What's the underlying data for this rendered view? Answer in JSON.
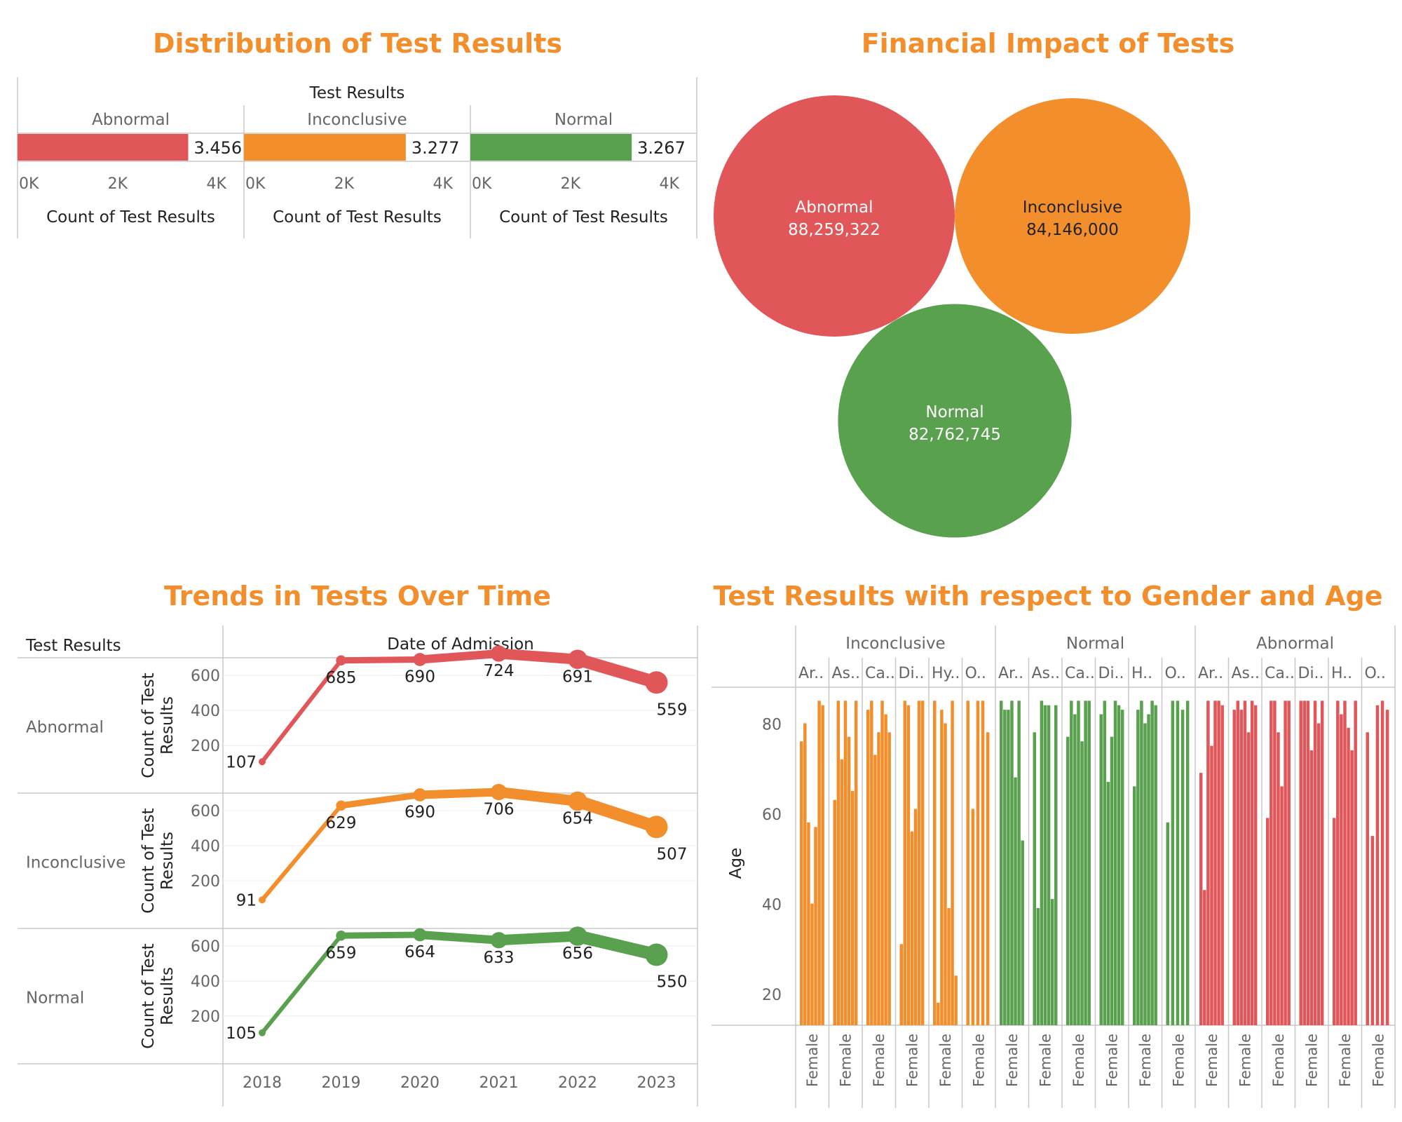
{
  "titles": {
    "distribution": "Distribution of Test Results",
    "financial": "Financial Impact of Tests",
    "trends": "Trends in Tests Over Time",
    "gender_age": "Test Results with respect to Gender and Age"
  },
  "colors": {
    "Abnormal": "#E15759",
    "Inconclusive": "#F28E2B",
    "Normal": "#59A14F",
    "title": "#F28E2B"
  },
  "chart_data": [
    {
      "id": "distribution",
      "type": "bar",
      "title": "Distribution of Test Results",
      "column_header": "Test Results",
      "categories": [
        "Abnormal",
        "Inconclusive",
        "Normal"
      ],
      "values": [
        3456,
        3277,
        3267
      ],
      "value_labels": [
        "3.456",
        "3.277",
        "3.267"
      ],
      "xlabel": "Count of Test Results",
      "xlim": [
        0,
        4500
      ],
      "ticks": [
        0,
        2000,
        4000
      ],
      "tick_labels": [
        "0K",
        "2K",
        "4K"
      ]
    },
    {
      "id": "financial",
      "type": "bubble",
      "title": "Financial Impact of Tests",
      "categories": [
        "Abnormal",
        "Inconclusive",
        "Normal"
      ],
      "values": [
        88259322,
        84146000,
        82762745
      ],
      "value_labels": [
        "88,259,322",
        "84,146,000",
        "82,762,745"
      ]
    },
    {
      "id": "trends",
      "type": "line",
      "title": "Trends in Tests Over Time",
      "row_header": "Test Results",
      "column_header": "Date of Admission",
      "ylabel": "Count of Test Results",
      "x": [
        "2018",
        "2019",
        "2020",
        "2021",
        "2022",
        "2023"
      ],
      "yticks": [
        200,
        400,
        600
      ],
      "ylim": [
        0,
        800
      ],
      "series": [
        {
          "name": "Abnormal",
          "values": [
            107,
            685,
            690,
            724,
            691,
            559
          ]
        },
        {
          "name": "Inconclusive",
          "values": [
            91,
            629,
            690,
            706,
            654,
            507
          ]
        },
        {
          "name": "Normal",
          "values": [
            105,
            659,
            664,
            633,
            656,
            550
          ]
        }
      ]
    },
    {
      "id": "gender_age",
      "type": "bar",
      "title": "Test Results with respect to Gender and Age",
      "ylabel": "Age",
      "yticks": [
        20,
        40,
        60,
        80
      ],
      "ylim": [
        13,
        88
      ],
      "gender_label": "Female",
      "groups": [
        {
          "name": "Inconclusive",
          "subgroups": [
            {
              "label": "Ar..",
              "values": [
                76,
                80,
                58,
                40,
                57,
                85,
                84
              ]
            },
            {
              "label": "As..",
              "values": [
                63,
                85,
                72,
                85,
                77,
                65,
                85
              ]
            },
            {
              "label": "Ca..",
              "values": [
                83,
                85,
                73,
                78,
                85,
                82,
                78
              ]
            },
            {
              "label": "Di..",
              "values": [
                31,
                85,
                84,
                56,
                61,
                85,
                85
              ]
            },
            {
              "label": "Hy..",
              "values": [
                85,
                18,
                83,
                80,
                39,
                85,
                24
              ]
            },
            {
              "label": "O..",
              "values": [
                85,
                61,
                85,
                85,
                78
              ]
            }
          ]
        },
        {
          "name": "Normal",
          "subgroups": [
            {
              "label": "Ar..",
              "values": [
                85,
                83,
                83,
                85,
                68,
                85,
                54
              ]
            },
            {
              "label": "As..",
              "values": [
                78,
                39,
                85,
                84,
                84,
                41,
                84
              ]
            },
            {
              "label": "Ca..",
              "values": [
                77,
                85,
                82,
                85,
                76,
                85,
                85
              ]
            },
            {
              "label": "Di..",
              "values": [
                82,
                85,
                67,
                77,
                85,
                84,
                83
              ]
            },
            {
              "label": "H..",
              "values": [
                66,
                83,
                85,
                80,
                82,
                85,
                84
              ]
            },
            {
              "label": "O..",
              "values": [
                58,
                85,
                85,
                83,
                85
              ]
            }
          ]
        },
        {
          "name": "Abnormal",
          "subgroups": [
            {
              "label": "Ar..",
              "values": [
                69,
                43,
                85,
                75,
                85,
                85,
                84
              ]
            },
            {
              "label": "As..",
              "values": [
                83,
                85,
                83,
                85,
                78,
                85,
                84
              ]
            },
            {
              "label": "Ca..",
              "values": [
                59,
                85,
                85,
                78,
                66,
                85,
                85
              ]
            },
            {
              "label": "Di..",
              "values": [
                85,
                85,
                85,
                74,
                85,
                80,
                85
              ]
            },
            {
              "label": "H..",
              "values": [
                59,
                85,
                82,
                85,
                79,
                74,
                85
              ]
            },
            {
              "label": "O..",
              "values": [
                78,
                55,
                84,
                85,
                83
              ]
            }
          ]
        }
      ]
    }
  ]
}
